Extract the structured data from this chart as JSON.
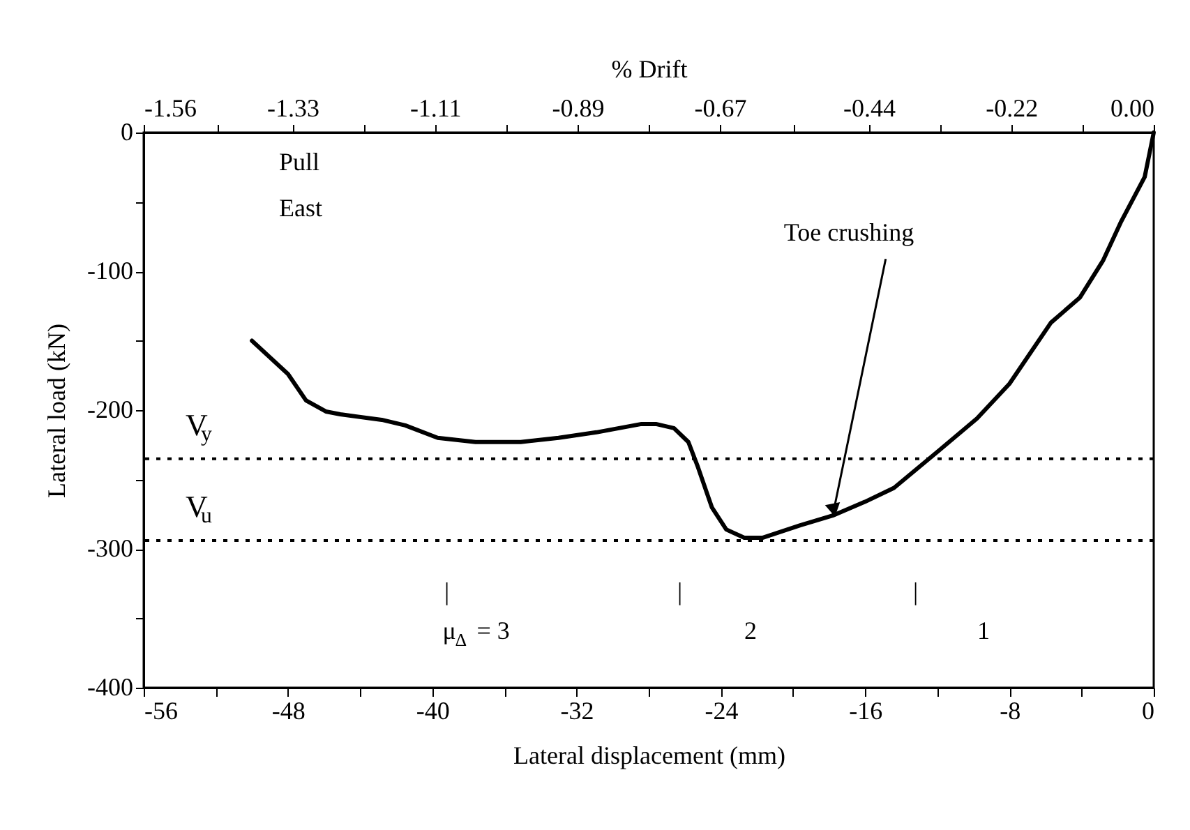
{
  "chart_data": {
    "type": "line",
    "xlabel": "Lateral displacement (mm)",
    "ylabel": "Lateral load (kN)",
    "x2label": "% Drift",
    "xlim": [
      -56,
      0
    ],
    "ylim": [
      -400,
      0
    ],
    "x2lim": [
      -1.56,
      0
    ],
    "xticks": [
      -56,
      {
        "value": -52,
        "label": null
      },
      -48,
      {
        "value": -44,
        "label": null
      },
      -40,
      {
        "value": -36,
        "label": null
      },
      -32,
      {
        "value": -28,
        "label": null
      },
      -24,
      {
        "value": -20,
        "label": null
      },
      -16,
      {
        "value": -12,
        "label": null
      },
      -8,
      {
        "value": -4,
        "label": null
      },
      0
    ],
    "yticks": [
      -400,
      {
        "value": -350,
        "label": null
      },
      -300,
      {
        "value": -250,
        "label": null
      },
      -200,
      {
        "value": -150,
        "label": null
      },
      -100,
      {
        "value": -50,
        "label": null
      },
      0
    ],
    "x2ticks": [
      -1.56,
      {
        "value": -1.445,
        "label": null
      },
      -1.33,
      {
        "value": -1.22,
        "label": null
      },
      -1.11,
      {
        "value": -1.0,
        "label": null
      },
      -0.89,
      {
        "value": -0.78,
        "label": null
      },
      -0.67,
      {
        "value": -0.555,
        "label": null
      },
      -0.44,
      {
        "value": -0.33,
        "label": null
      },
      -0.22,
      {
        "value": -0.11,
        "label": null
      },
      {
        "value": 0,
        "label": "0.00"
      }
    ],
    "grid": false,
    "marker": "none",
    "line_style": "solid",
    "series": [
      {
        "color": "#000000",
        "x": [
          -50.0,
          -48.0,
          -47.0,
          -45.9,
          -45.1,
          -42.8,
          -41.5,
          -39.7,
          -37.6,
          -35.1,
          -33.0,
          -30.9,
          -28.4,
          -27.6,
          -26.6,
          -25.8,
          -25.3,
          -24.5,
          -23.7,
          -22.7,
          -21.7,
          -19.6,
          -17.8,
          -16.0,
          -14.4,
          -11.9,
          -9.8,
          -8.0,
          -5.7,
          -4.1,
          -2.8,
          -1.8,
          -0.5,
          0
        ],
        "values": [
          -150,
          -174,
          -193,
          -201,
          -203,
          -207,
          -211,
          -220,
          -223,
          -223,
          -220,
          -216,
          -210,
          -210,
          -213,
          -223,
          -240,
          -270,
          -286,
          -292,
          -292,
          -283,
          -276,
          -266,
          -256,
          -229,
          -206,
          -181,
          -137,
          -119,
          -92,
          -64,
          -32,
          0
        ]
      }
    ],
    "ref_lines": [
      {
        "axis": "y",
        "value": -235,
        "label": "V$_{y}$",
        "line_style": "dotted",
        "color": "#000000"
      },
      {
        "axis": "y",
        "value": -294,
        "label": "V$_{u}$",
        "line_style": "dotted",
        "color": "#000000"
      }
    ],
    "annotations": [
      "Pull",
      "East",
      {
        "text": "Toe crushing",
        "x": -17.8,
        "y": -276
      },
      "|",
      "|",
      "|",
      "μ$_{Δ}$ = 3",
      "2",
      "1"
    ]
  }
}
